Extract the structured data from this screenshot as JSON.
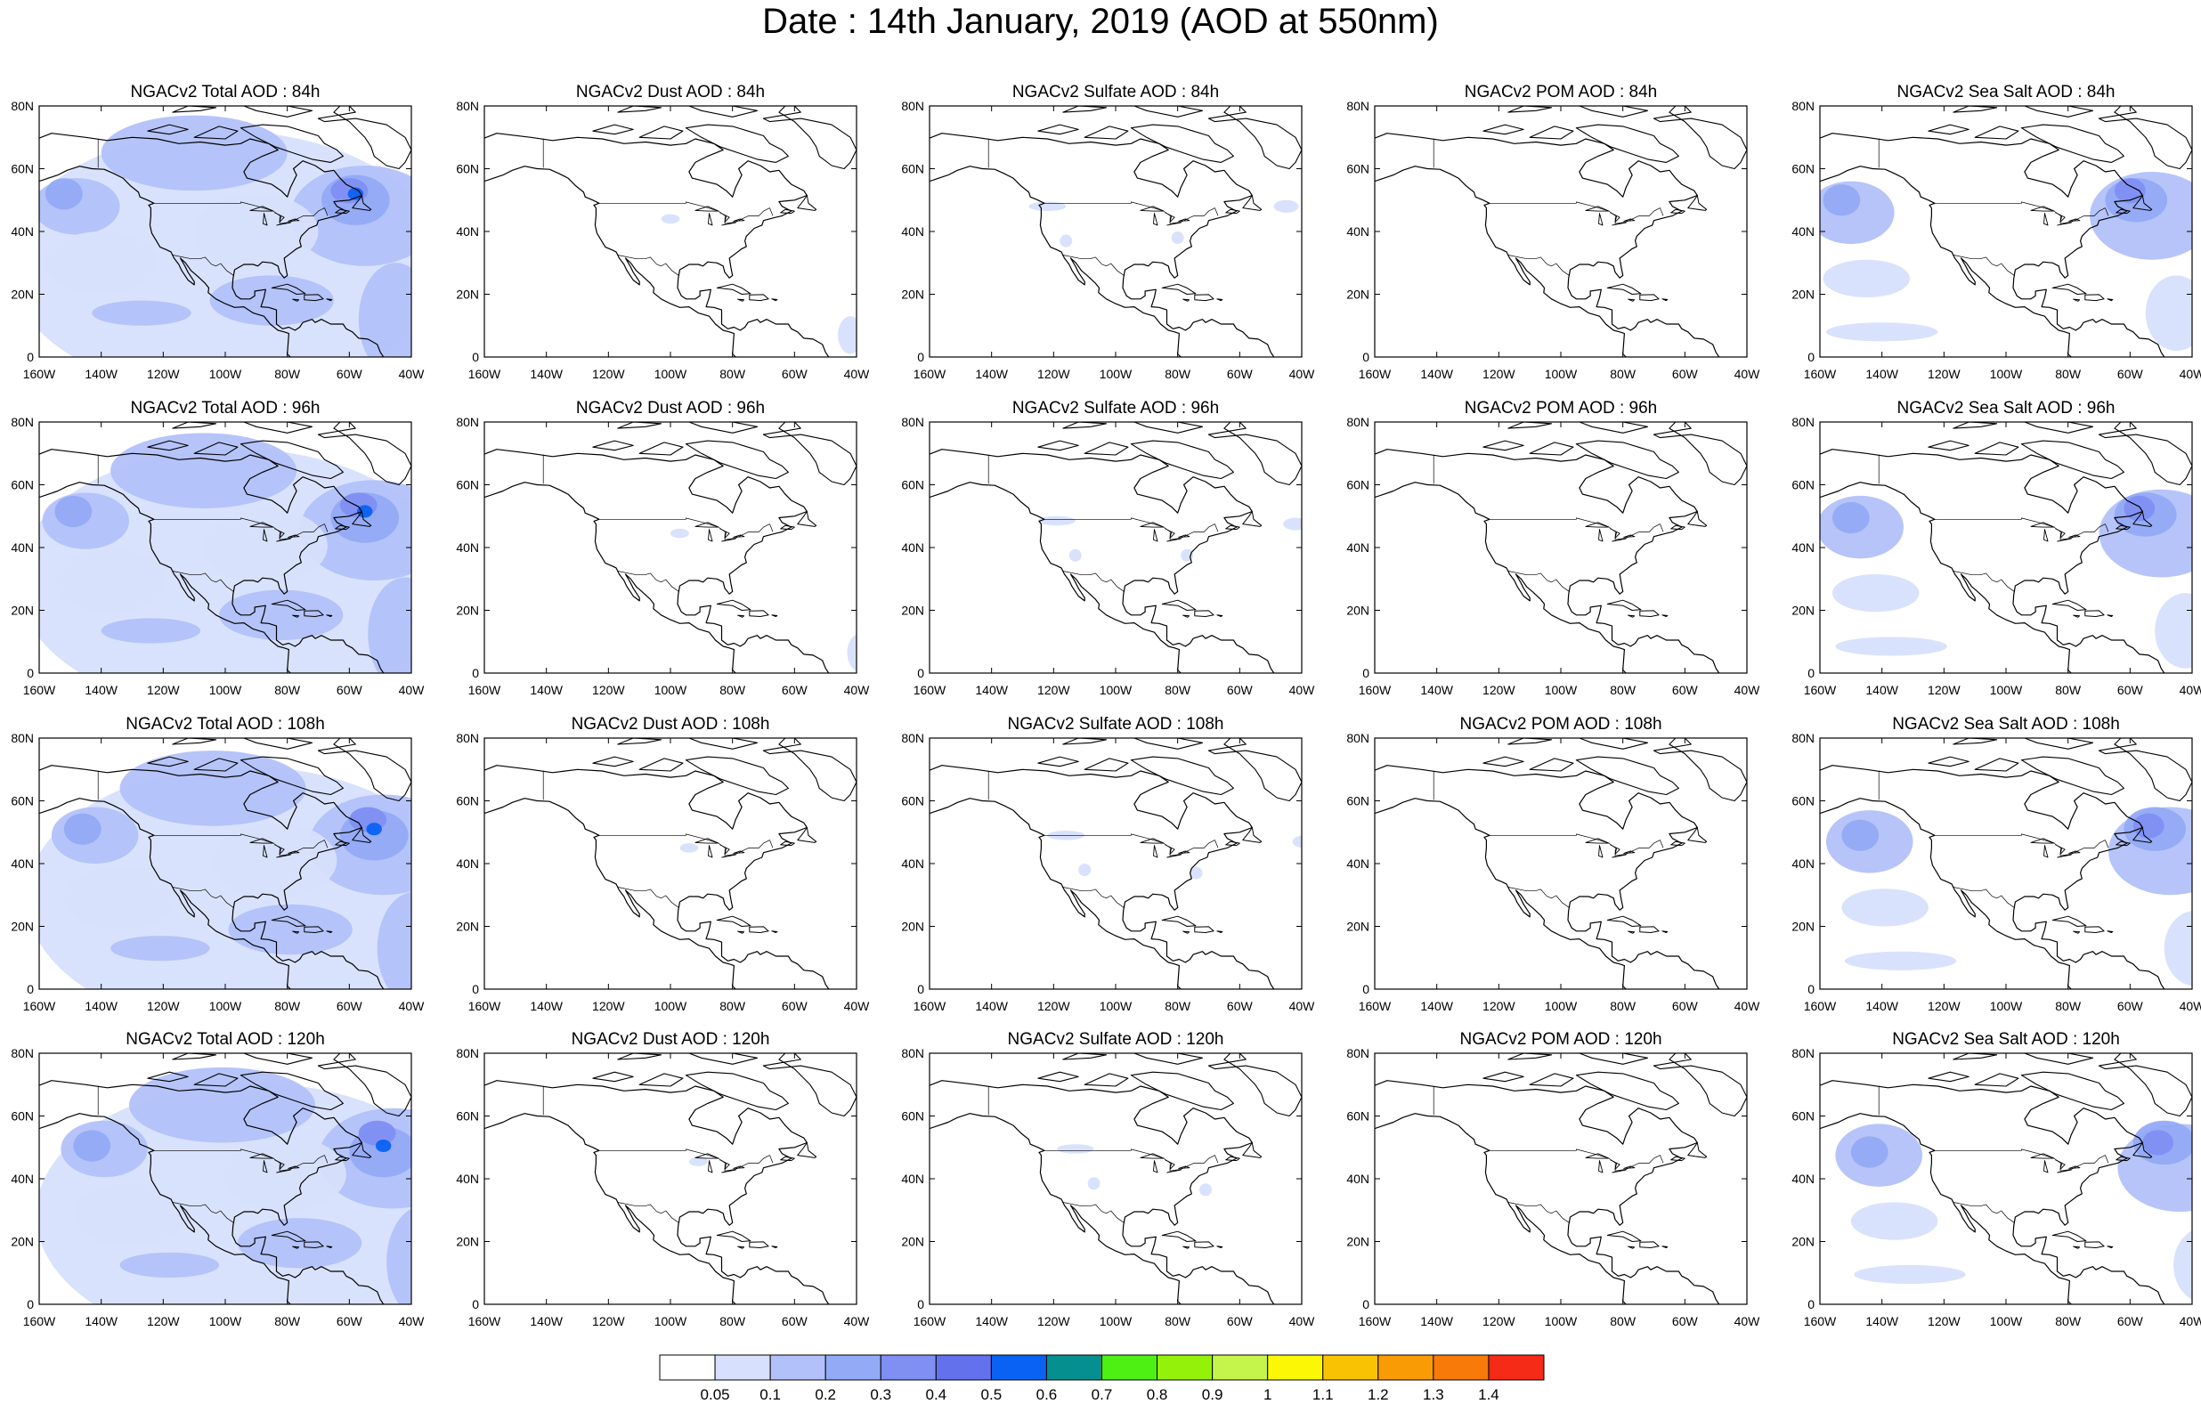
{
  "title": "Date : 14th January, 2019 (AOD at 550nm)",
  "panels": [
    {
      "title": "NGACv2 Total AOD : 84h",
      "species": "total"
    },
    {
      "title": "NGACv2 Dust AOD : 84h",
      "species": "dust"
    },
    {
      "title": "NGACv2 Sulfate AOD : 84h",
      "species": "sulfate"
    },
    {
      "title": "NGACv2 POM AOD : 84h",
      "species": "pom"
    },
    {
      "title": "NGACv2 Sea Salt AOD : 84h",
      "species": "seasalt"
    },
    {
      "title": "NGACv2 Total AOD : 96h",
      "species": "total"
    },
    {
      "title": "NGACv2 Dust AOD : 96h",
      "species": "dust"
    },
    {
      "title": "NGACv2 Sulfate AOD : 96h",
      "species": "sulfate"
    },
    {
      "title": "NGACv2 POM AOD : 96h",
      "species": "pom"
    },
    {
      "title": "NGACv2 Sea Salt AOD : 96h",
      "species": "seasalt"
    },
    {
      "title": "NGACv2 Total AOD : 108h",
      "species": "total"
    },
    {
      "title": "NGACv2 Dust AOD : 108h",
      "species": "dust"
    },
    {
      "title": "NGACv2 Sulfate AOD : 108h",
      "species": "sulfate"
    },
    {
      "title": "NGACv2 POM AOD : 108h",
      "species": "pom"
    },
    {
      "title": "NGACv2 Sea Salt AOD : 108h",
      "species": "seasalt"
    },
    {
      "title": "NGACv2 Total AOD : 120h",
      "species": "total"
    },
    {
      "title": "NGACv2 Dust AOD : 120h",
      "species": "dust"
    },
    {
      "title": "NGACv2 Sulfate AOD : 120h",
      "species": "sulfate"
    },
    {
      "title": "NGACv2 POM AOD : 120h",
      "species": "pom"
    },
    {
      "title": "NGACv2 Sea Salt  AOD : 120h",
      "species": "seasalt"
    }
  ],
  "map": {
    "lat_ticks": [
      "80N",
      "60N",
      "40N",
      "20N",
      "0"
    ],
    "lon_ticks": [
      "160W",
      "140W",
      "120W",
      "100W",
      "80W",
      "60W",
      "40W"
    ],
    "lat_range": [
      0,
      80
    ],
    "lon_range": [
      -160,
      -40
    ]
  },
  "colorbar": {
    "labels": [
      "0.05",
      "0.1",
      "0.2",
      "0.3",
      "0.4",
      "0.5",
      "0.6",
      "0.7",
      "0.8",
      "0.9",
      "1",
      "1.1",
      "1.2",
      "1.3",
      "1.4"
    ],
    "colors": [
      "#ffffff",
      "#d7e0fc",
      "#b2c1f9",
      "#93aaf6",
      "#7f8ff2",
      "#6471ed",
      "#0a62f2",
      "#068f8f",
      "#4ef013",
      "#94f10a",
      "#c5f44b",
      "#fbf705",
      "#f9c304",
      "#f99b05",
      "#f87a08",
      "#f52a17"
    ]
  }
}
